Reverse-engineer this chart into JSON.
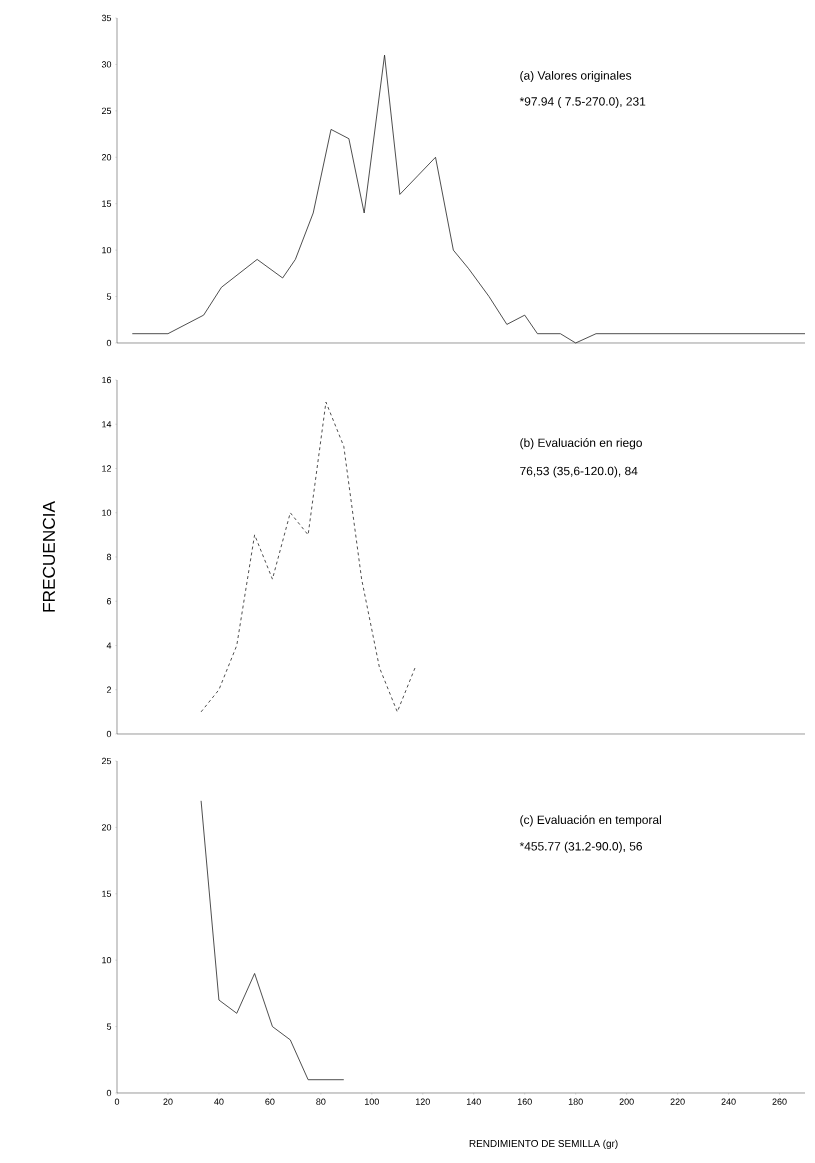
{
  "chart_data": [
    {
      "type": "line",
      "color": "#222222",
      "line_style": "solid",
      "annotations": [
        "(a) Valores originales",
        "*97.94 ( 7.5-270.0), 231"
      ],
      "x": [
        6,
        14,
        20,
        34,
        41,
        55,
        65,
        70,
        77,
        84,
        91,
        97,
        105,
        111,
        118,
        125,
        132,
        138,
        146,
        153,
        160,
        165,
        174,
        180,
        188,
        270
      ],
      "values": [
        1,
        1,
        1,
        3,
        6,
        9,
        7,
        9,
        14,
        23,
        22,
        14,
        31,
        16,
        18,
        20,
        10,
        8,
        5,
        2,
        3,
        1,
        1,
        0,
        1,
        1
      ],
      "xlim": [
        0,
        270
      ],
      "ylim": [
        0,
        35
      ],
      "yticks": [
        0,
        5,
        10,
        15,
        20,
        25,
        30,
        35
      ],
      "tick_labels": "y"
    },
    {
      "type": "line",
      "color": "#222222",
      "line_style": "dashed",
      "ylabel": "FRECUENCIA",
      "annotations": [
        "(b) Evaluación en riego",
        "76,53 (35,6-120.0), 84"
      ],
      "x": [
        33,
        40,
        47,
        54,
        61,
        68,
        75,
        82,
        89,
        96,
        103,
        110,
        117
      ],
      "values": [
        1,
        2,
        4,
        9,
        7,
        10,
        9,
        15,
        13,
        7,
        3,
        1,
        3
      ],
      "xlim": [
        0,
        270
      ],
      "ylim": [
        0,
        16
      ],
      "yticks": [
        0,
        2,
        4,
        6,
        8,
        10,
        12,
        14,
        16
      ],
      "tick_labels": "y"
    },
    {
      "type": "line",
      "color": "#222222",
      "line_style": "solid",
      "xlabel": "RENDIMIENTO DE SEMILLA (gr)",
      "annotations": [
        "(c) Evaluación en temporal",
        "*455.77 (31.2-90.0), 56"
      ],
      "x": [
        33,
        40,
        47,
        54,
        61,
        68,
        75,
        82,
        89
      ],
      "values": [
        22,
        7,
        6,
        9,
        5,
        4,
        1,
        1,
        1
      ],
      "xlim": [
        0,
        270
      ],
      "ylim": [
        0,
        25
      ],
      "yticks": [
        0,
        5,
        10,
        15,
        20,
        25
      ],
      "xticks": [
        0,
        20,
        40,
        60,
        80,
        100,
        120,
        140,
        160,
        180,
        200,
        220,
        240,
        260
      ]
    }
  ]
}
